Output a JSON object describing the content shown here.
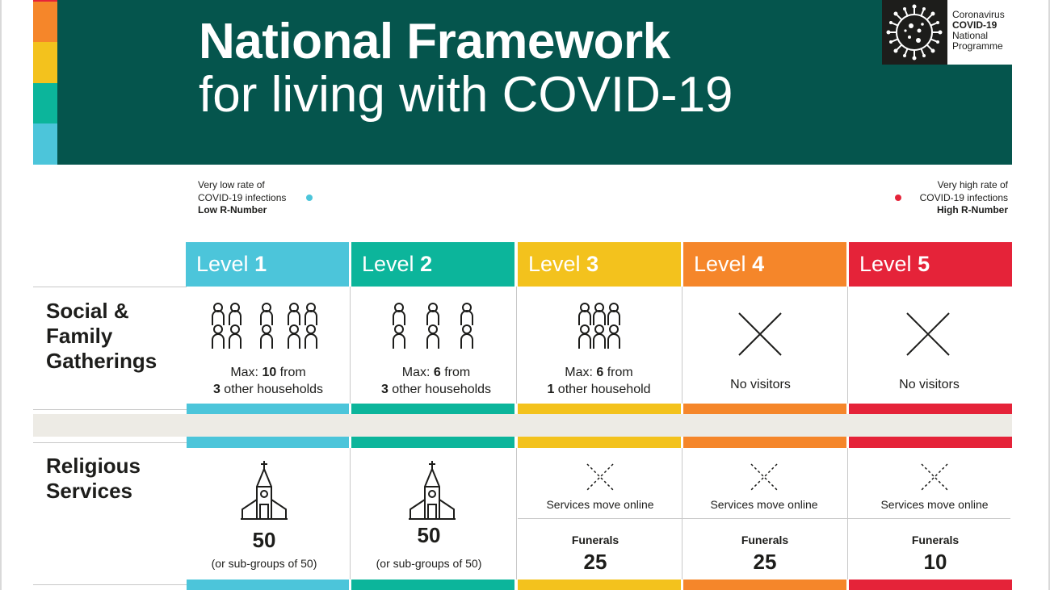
{
  "header": {
    "title_line1": "National Framework",
    "title_line2": "for living with COVID-19",
    "background_color": "#05554d",
    "stripe_colors": [
      "#e52339",
      "#f5862a",
      "#f3c21d",
      "#0cb59b",
      "#4cc5da"
    ]
  },
  "logo": {
    "line1": "Coronavirus",
    "line2": "COVID-19",
    "line3": "National",
    "line4": "Programme",
    "icon": "virus-icon"
  },
  "scale": {
    "low": {
      "line1": "Very low rate of",
      "line2": "COVID-19 infections",
      "line3": "Low R-Number"
    },
    "high": {
      "line1": "Very high rate of",
      "line2": "COVID-19 infections",
      "line3": "High R-Number"
    }
  },
  "levels": [
    {
      "prefix": "Level ",
      "number": "1",
      "color": "#4cc5da"
    },
    {
      "prefix": "Level ",
      "number": "2",
      "color": "#0cb59b"
    },
    {
      "prefix": "Level ",
      "number": "3",
      "color": "#f3c21d"
    },
    {
      "prefix": "Level ",
      "number": "4",
      "color": "#f5862a"
    },
    {
      "prefix": "Level ",
      "number": "5",
      "color": "#e52339"
    }
  ],
  "rows": {
    "social": {
      "label_line1": "Social &",
      "label_line2": "Family",
      "label_line3": "Gatherings",
      "cells": [
        {
          "icon": "people-group-icon",
          "max_prefix": "Max: ",
          "max_value": "10",
          "from": " from",
          "households_value": "3",
          "households_text": " other households"
        },
        {
          "icon": "people-group-icon",
          "max_prefix": "Max: ",
          "max_value": "6",
          "from": " from",
          "households_value": "3",
          "households_text": " other households"
        },
        {
          "icon": "people-group-icon",
          "max_prefix": "Max: ",
          "max_value": "6",
          "from": " from",
          "households_value": "1",
          "households_text": " other household"
        },
        {
          "icon": "cross-icon",
          "text": "No visitors"
        },
        {
          "icon": "cross-icon",
          "text": "No visitors"
        }
      ]
    },
    "religious": {
      "label_line1": "Religious",
      "label_line2": "Services",
      "cells": [
        {
          "icon": "church-icon",
          "number": "50",
          "note": "(or sub-groups of 50)"
        },
        {
          "icon": "church-icon",
          "number": "50",
          "note": "(or sub-groups of 50)"
        },
        {
          "icon": "dotted-cross-icon",
          "text": "Services move online",
          "funerals_label": "Funerals",
          "funerals_value": "25"
        },
        {
          "icon": "dotted-cross-icon",
          "text": "Services move online",
          "funerals_label": "Funerals",
          "funerals_value": "25"
        },
        {
          "icon": "dotted-cross-icon",
          "text": "Services move online",
          "funerals_label": "Funerals",
          "funerals_value": "10"
        }
      ]
    }
  }
}
